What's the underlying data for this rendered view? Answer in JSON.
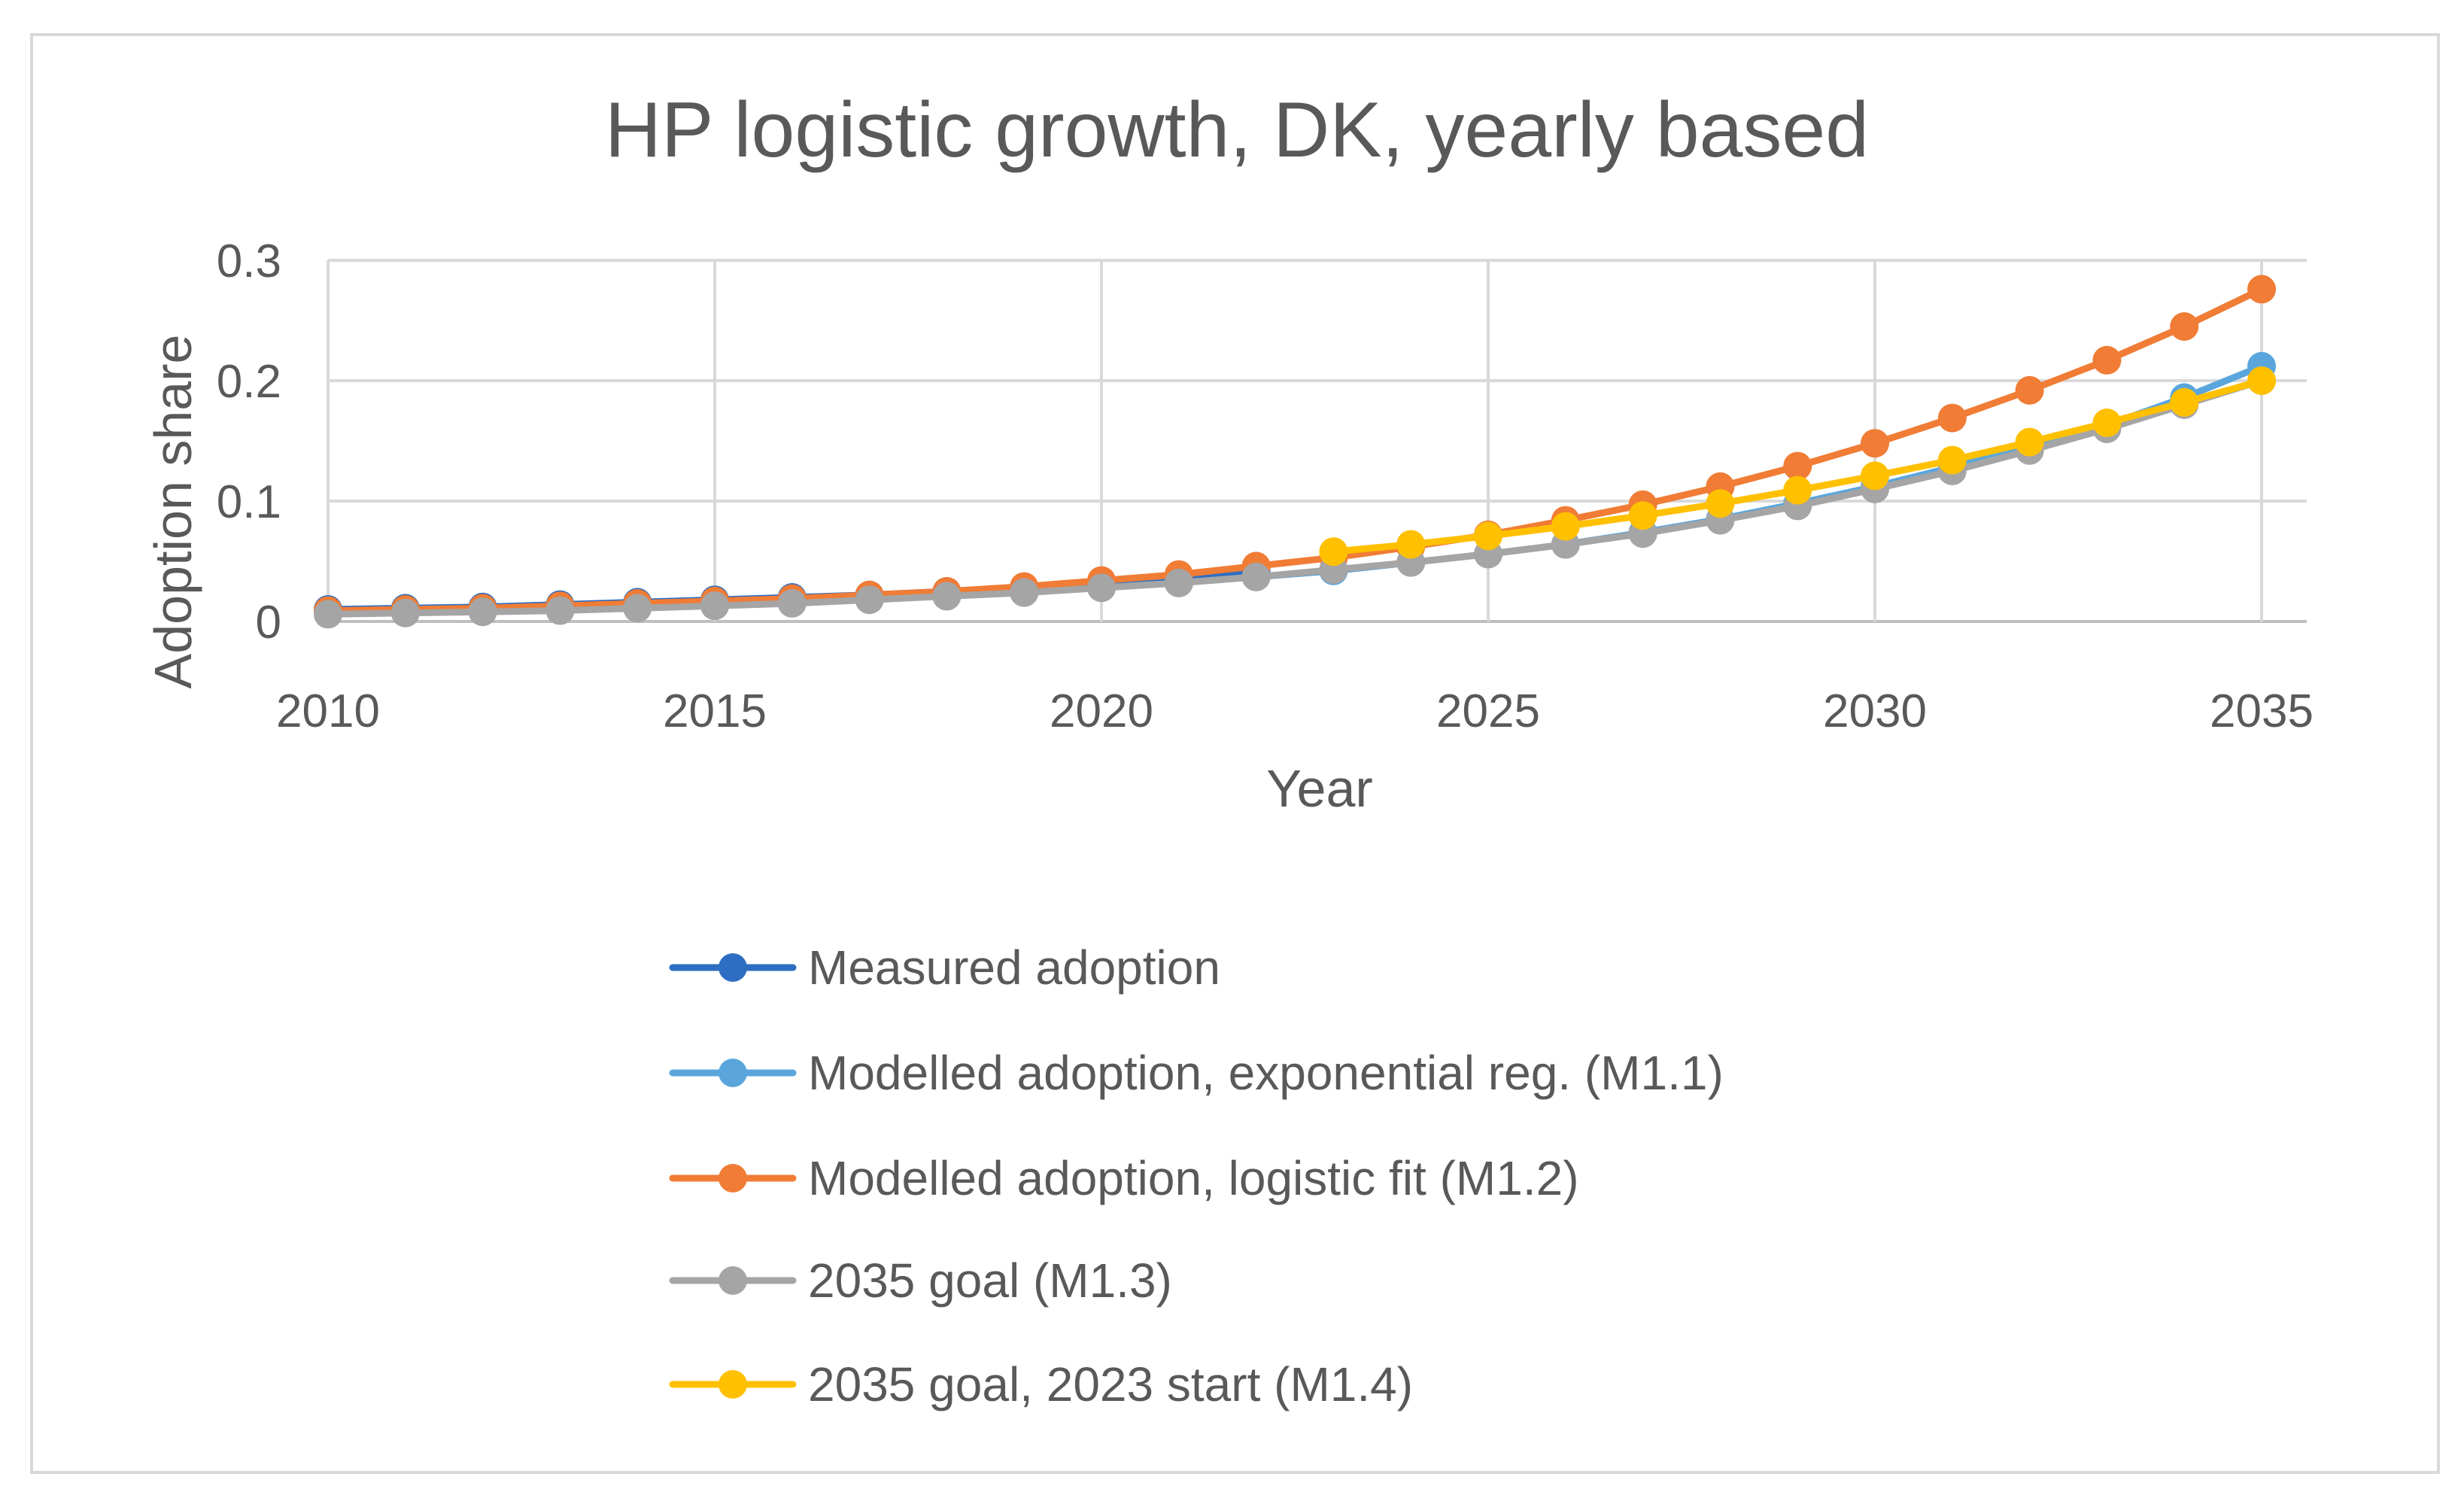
{
  "chart_data": {
    "type": "line",
    "title": "HP logistic growth, DK, yearly based",
    "xlabel": "Year",
    "ylabel": "Adoption share",
    "xlim": [
      2010,
      2035
    ],
    "ylim": [
      0,
      0.3
    ],
    "x_ticks": [
      2010,
      2015,
      2020,
      2025,
      2030,
      2035
    ],
    "x_tick_labels": [
      "2010",
      "2015",
      "2020",
      "2025",
      "2030",
      "2035"
    ],
    "y_ticks": [
      0,
      0.1,
      0.2,
      0.3
    ],
    "y_tick_labels": [
      "0",
      "0.1",
      "0.2",
      "0.3"
    ],
    "grid": true,
    "legend_position": "bottom",
    "series": [
      {
        "name": "Measured adoption",
        "color": "#2e6ec2",
        "x": [
          2010,
          2011,
          2012,
          2013,
          2014,
          2015,
          2016,
          2017,
          2018,
          2019,
          2020,
          2021,
          2022
        ],
        "values": [
          0.01,
          0.011,
          0.012,
          0.014,
          0.016,
          0.018,
          0.02,
          0.022,
          0.025,
          0.028,
          0.032,
          0.037,
          0.042
        ]
      },
      {
        "name": "Modelled adoption, exponential reg. (M1.1)",
        "color": "#5aa6dc",
        "x": [
          2010,
          2011,
          2012,
          2013,
          2014,
          2015,
          2016,
          2017,
          2018,
          2019,
          2020,
          2021,
          2022,
          2023,
          2024,
          2025,
          2026,
          2027,
          2028,
          2029,
          2030,
          2031,
          2032,
          2033,
          2034,
          2035
        ],
        "values": [
          0.008,
          0.009,
          0.01,
          0.011,
          0.013,
          0.014,
          0.016,
          0.019,
          0.021,
          0.024,
          0.028,
          0.032,
          0.037,
          0.042,
          0.049,
          0.056,
          0.064,
          0.074,
          0.085,
          0.098,
          0.112,
          0.128,
          0.145,
          0.163,
          0.186,
          0.212
        ]
      },
      {
        "name": "Modelled adoption, logistic fit (M1.2)",
        "color": "#f07c35",
        "x": [
          2010,
          2011,
          2012,
          2013,
          2014,
          2015,
          2016,
          2017,
          2018,
          2019,
          2020,
          2021,
          2022,
          2023,
          2024,
          2025,
          2026,
          2027,
          2028,
          2029,
          2030,
          2031,
          2032,
          2033,
          2034,
          2035
        ],
        "values": [
          0.009,
          0.01,
          0.011,
          0.013,
          0.015,
          0.017,
          0.019,
          0.022,
          0.025,
          0.029,
          0.034,
          0.039,
          0.046,
          0.053,
          0.062,
          0.072,
          0.084,
          0.097,
          0.112,
          0.129,
          0.148,
          0.169,
          0.192,
          0.217,
          0.245,
          0.276
        ]
      },
      {
        "name": "2035 goal (M1.3)",
        "color": "#a5a5a5",
        "x": [
          2010,
          2011,
          2012,
          2013,
          2014,
          2015,
          2016,
          2017,
          2018,
          2019,
          2020,
          2021,
          2022,
          2023,
          2024,
          2025,
          2026,
          2027,
          2028,
          2029,
          2030,
          2031,
          2032,
          2033,
          2034,
          2035
        ],
        "values": [
          0.006,
          0.007,
          0.008,
          0.009,
          0.011,
          0.013,
          0.015,
          0.018,
          0.021,
          0.024,
          0.028,
          0.032,
          0.037,
          0.043,
          0.049,
          0.056,
          0.064,
          0.073,
          0.084,
          0.096,
          0.11,
          0.125,
          0.142,
          0.16,
          0.18,
          0.2
        ]
      },
      {
        "name": "2035 goal, 2023 start (M1.4)",
        "color": "#ffc000",
        "x": [
          2023,
          2024,
          2025,
          2026,
          2027,
          2028,
          2029,
          2030,
          2031,
          2032,
          2033,
          2034,
          2035
        ],
        "values": [
          0.058,
          0.064,
          0.071,
          0.079,
          0.088,
          0.098,
          0.109,
          0.121,
          0.134,
          0.149,
          0.165,
          0.182,
          0.2
        ]
      }
    ]
  }
}
